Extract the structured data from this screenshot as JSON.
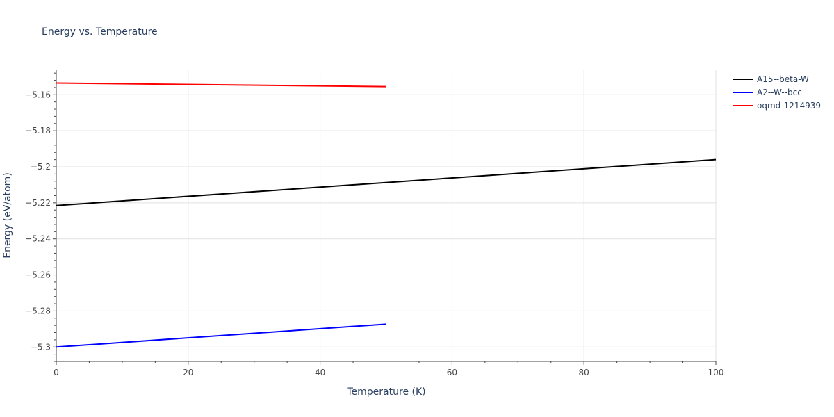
{
  "chart_data": {
    "type": "line",
    "title": "Energy vs. Temperature",
    "xlabel": "Temperature (K)",
    "ylabel": "Energy (eV/atom)",
    "xlim": [
      0,
      100
    ],
    "ylim": [
      -5.308,
      -5.146
    ],
    "x_ticks": [
      0,
      20,
      40,
      60,
      80,
      100
    ],
    "x_tick_labels": [
      "0",
      "20",
      "40",
      "60",
      "80",
      "100"
    ],
    "y_ticks": [
      -5.3,
      -5.28,
      -5.26,
      -5.24,
      -5.22,
      -5.2,
      -5.18,
      -5.16
    ],
    "y_tick_labels": [
      "−5.3",
      "−5.28",
      "−5.26",
      "−5.24",
      "−5.22",
      "−5.2",
      "−5.18",
      "−5.16"
    ],
    "grid": true,
    "legend_position": "top-right",
    "series": [
      {
        "name": "A15--beta-W",
        "color": "#000000",
        "x": [
          0,
          100
        ],
        "y": [
          -5.2215,
          -5.196
        ]
      },
      {
        "name": "A2--W--bcc",
        "color": "#0000ff",
        "x": [
          0,
          50
        ],
        "y": [
          -5.3,
          -5.2873
        ]
      },
      {
        "name": "oqmd-1214939",
        "color": "#ff0000",
        "x": [
          0,
          50
        ],
        "y": [
          -5.1535,
          -5.1555
        ]
      }
    ]
  }
}
